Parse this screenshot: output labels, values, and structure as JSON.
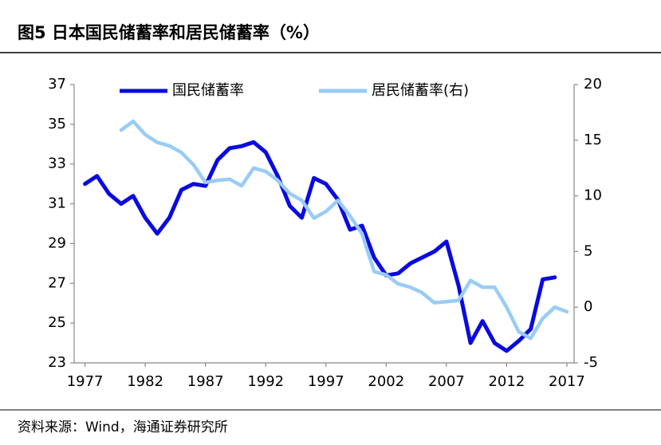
{
  "chart_data": {
    "type": "line",
    "title": "图5  日本国民储蓄率和居民储蓄率（%）",
    "source": "资料来源：Wind，海通证券研究所",
    "x": [
      1977,
      1978,
      1979,
      1980,
      1981,
      1982,
      1983,
      1984,
      1985,
      1986,
      1987,
      1988,
      1989,
      1990,
      1991,
      1992,
      1993,
      1994,
      1995,
      1996,
      1997,
      1998,
      1999,
      2000,
      2001,
      2002,
      2003,
      2004,
      2005,
      2006,
      2007,
      2008,
      2009,
      2010,
      2011,
      2012,
      2013,
      2014,
      2015,
      2016,
      2017
    ],
    "xlim": [
      1976.1,
      2017.6
    ],
    "xticks": [
      1977,
      1982,
      1987,
      1992,
      1997,
      2002,
      2007,
      2012,
      2017
    ],
    "ylim": [
      23,
      37
    ],
    "yticks": [
      23,
      25,
      27,
      29,
      31,
      33,
      35,
      37
    ],
    "y2lim": [
      -5,
      20
    ],
    "y2ticks": [
      -5,
      0,
      5,
      10,
      15,
      20
    ],
    "legend": "top",
    "series": [
      {
        "name": "国民储蓄率",
        "color": "#0a0ae0",
        "values": [
          32.0,
          32.4,
          31.5,
          31.0,
          31.4,
          30.3,
          29.5,
          30.3,
          31.7,
          32.0,
          31.9,
          33.2,
          33.8,
          33.9,
          34.1,
          33.6,
          32.4,
          30.9,
          30.3,
          32.3,
          32.0,
          31.2,
          29.7,
          29.9,
          28.3,
          27.4,
          27.5,
          28.0,
          28.3,
          28.6,
          29.1,
          26.9,
          24.0,
          25.1,
          24.0,
          23.6,
          24.1,
          24.7,
          27.2,
          27.3,
          null
        ]
      },
      {
        "name": "居民储蓄率(右)",
        "color": "#99ccf5",
        "axis": "y2",
        "values": [
          null,
          null,
          null,
          15.9,
          16.7,
          15.5,
          14.8,
          14.5,
          13.9,
          12.8,
          11.2,
          11.4,
          11.5,
          10.9,
          12.5,
          12.2,
          11.4,
          10.2,
          9.6,
          8.0,
          8.6,
          9.6,
          8.2,
          6.6,
          3.2,
          2.9,
          2.1,
          1.8,
          1.3,
          0.4,
          0.5,
          0.6,
          2.4,
          1.8,
          1.8,
          0.0,
          -2.2,
          -2.8,
          -1.0,
          0.0,
          -0.4
        ]
      }
    ]
  }
}
